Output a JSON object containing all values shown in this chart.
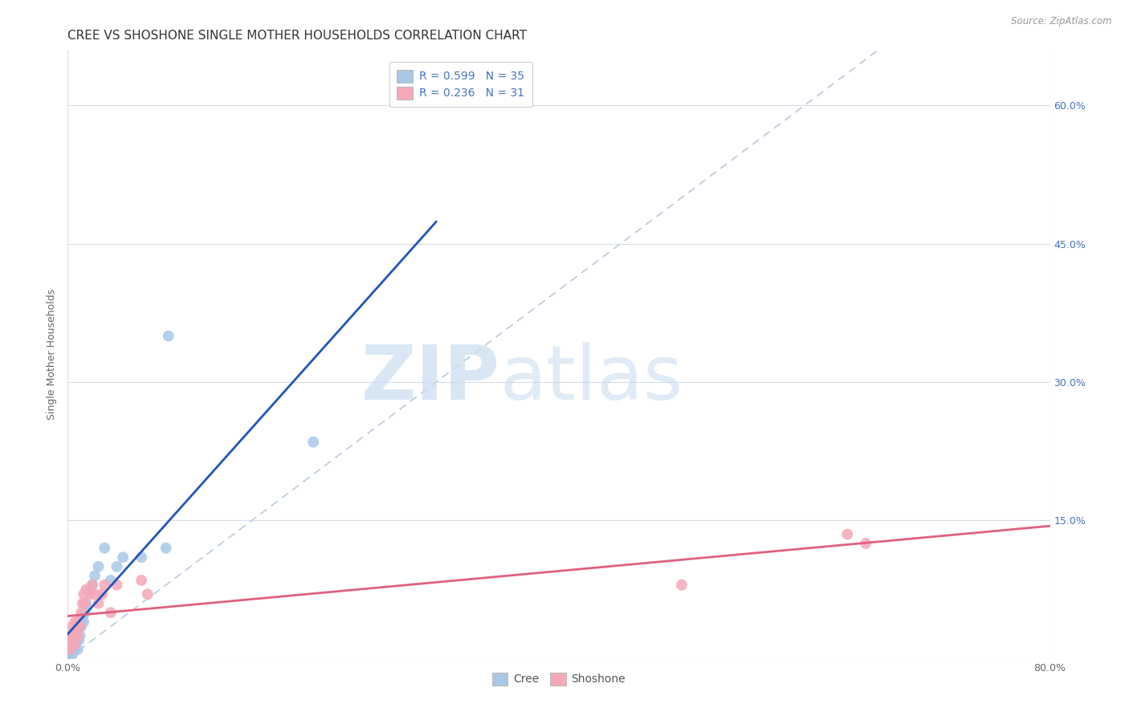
{
  "title": "CREE VS SHOSHONE SINGLE MOTHER HOUSEHOLDS CORRELATION CHART",
  "source": "Source: ZipAtlas.com",
  "ylabel": "Single Mother Households",
  "xlim": [
    0.0,
    0.8
  ],
  "ylim": [
    0.0,
    0.66
  ],
  "ytick_positions": [
    0.0,
    0.15,
    0.3,
    0.45,
    0.6
  ],
  "yticklabels_right": [
    "",
    "15.0%",
    "30.0%",
    "45.0%",
    "60.0%"
  ],
  "cree_color": "#a8c8e8",
  "shoshone_color": "#f4a8b8",
  "cree_line_color": "#2255bb",
  "shoshone_line_color": "#e06080",
  "diagonal_color": "#b8cce0",
  "background_color": "#ffffff",
  "grid_color": "#d8dce8",
  "cree_x": [
    0.001,
    0.002,
    0.003,
    0.003,
    0.004,
    0.004,
    0.005,
    0.005,
    0.005,
    0.006,
    0.006,
    0.007,
    0.007,
    0.008,
    0.008,
    0.009,
    0.01,
    0.01,
    0.011,
    0.012,
    0.013,
    0.014,
    0.015,
    0.018,
    0.02,
    0.022,
    0.025,
    0.03,
    0.035,
    0.04,
    0.045,
    0.06,
    0.08,
    0.082,
    0.2
  ],
  "cree_y": [
    0.005,
    0.01,
    0.015,
    0.02,
    0.025,
    0.005,
    0.01,
    0.02,
    0.03,
    0.015,
    0.03,
    0.02,
    0.035,
    0.01,
    0.025,
    0.02,
    0.04,
    0.025,
    0.035,
    0.045,
    0.04,
    0.05,
    0.06,
    0.075,
    0.08,
    0.09,
    0.1,
    0.12,
    0.085,
    0.1,
    0.11,
    0.11,
    0.12,
    0.35,
    0.235
  ],
  "shoshone_x": [
    0.002,
    0.003,
    0.003,
    0.004,
    0.004,
    0.005,
    0.005,
    0.006,
    0.006,
    0.007,
    0.008,
    0.009,
    0.01,
    0.011,
    0.012,
    0.013,
    0.014,
    0.015,
    0.018,
    0.02,
    0.022,
    0.025,
    0.028,
    0.03,
    0.035,
    0.04,
    0.06,
    0.065,
    0.5,
    0.635,
    0.65
  ],
  "shoshone_y": [
    0.01,
    0.015,
    0.025,
    0.02,
    0.035,
    0.015,
    0.03,
    0.02,
    0.04,
    0.03,
    0.025,
    0.04,
    0.035,
    0.05,
    0.06,
    0.07,
    0.06,
    0.075,
    0.07,
    0.08,
    0.07,
    0.06,
    0.07,
    0.08,
    0.05,
    0.08,
    0.085,
    0.07,
    0.08,
    0.135,
    0.125
  ],
  "title_fontsize": 11,
  "axis_fontsize": 9,
  "tick_fontsize": 9,
  "legend_fontsize": 10
}
